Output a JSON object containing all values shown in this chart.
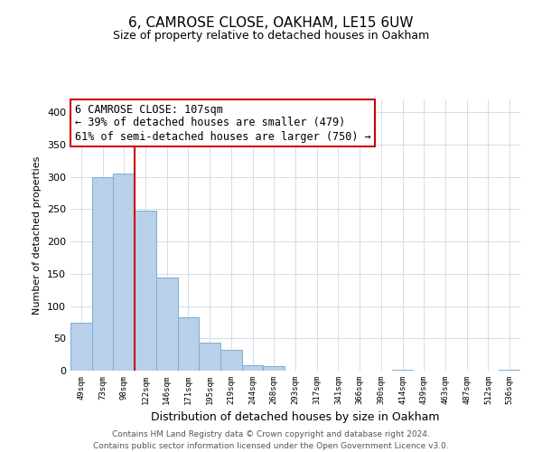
{
  "title": "6, CAMROSE CLOSE, OAKHAM, LE15 6UW",
  "subtitle": "Size of property relative to detached houses in Oakham",
  "xlabel": "Distribution of detached houses by size in Oakham",
  "ylabel": "Number of detached properties",
  "bar_labels": [
    "49sqm",
    "73sqm",
    "98sqm",
    "122sqm",
    "146sqm",
    "171sqm",
    "195sqm",
    "219sqm",
    "244sqm",
    "268sqm",
    "293sqm",
    "317sqm",
    "341sqm",
    "366sqm",
    "390sqm",
    "414sqm",
    "439sqm",
    "463sqm",
    "487sqm",
    "512sqm",
    "536sqm"
  ],
  "bar_values": [
    74,
    300,
    305,
    248,
    144,
    83,
    44,
    32,
    8,
    7,
    0,
    0,
    0,
    0,
    0,
    2,
    0,
    0,
    0,
    0,
    2
  ],
  "bar_color": "#b8d0ea",
  "bar_edge_color": "#7aadd4",
  "vline_x": 2.5,
  "vline_color": "#cc0000",
  "annotation_text_line1": "6 CAMROSE CLOSE: 107sqm",
  "annotation_text_line2": "← 39% of detached houses are smaller (479)",
  "annotation_text_line3": "61% of semi-detached houses are larger (750) →",
  "ylim": [
    0,
    420
  ],
  "yticks": [
    0,
    50,
    100,
    150,
    200,
    250,
    300,
    350,
    400
  ],
  "footer_line1": "Contains HM Land Registry data © Crown copyright and database right 2024.",
  "footer_line2": "Contains public sector information licensed under the Open Government Licence v3.0.",
  "background_color": "#ffffff",
  "grid_color": "#d4dce8"
}
